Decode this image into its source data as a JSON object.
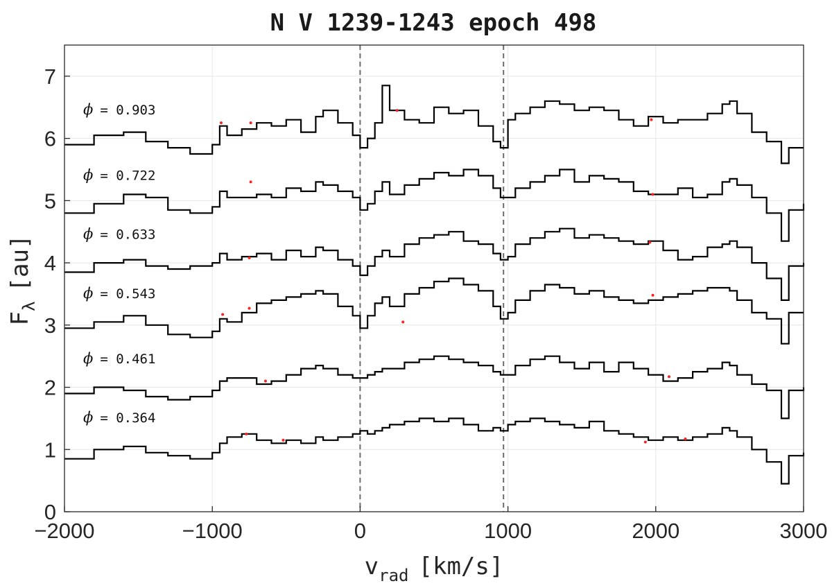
{
  "chart_data": {
    "type": "line",
    "title": "N V 1239-1243 epoch 498",
    "xlabel": {
      "main": "v",
      "sub": "rad",
      "units": "[km/s]"
    },
    "ylabel": {
      "main": "F",
      "sub": "λ",
      "units": "[au]"
    },
    "xlim": [
      -2000,
      3000
    ],
    "ylim": [
      0,
      7.5
    ],
    "xticks": [
      -2000,
      -1000,
      0,
      1000,
      2000,
      3000
    ],
    "yticks": [
      0,
      1,
      2,
      3,
      4,
      5,
      6,
      7
    ],
    "grid": true,
    "reference_lines_x": [
      0,
      970
    ],
    "series": [
      {
        "name": "ϕ = 0.903",
        "label_num": "0.903",
        "offset": 5.85,
        "x": [
          -2000,
          -1800,
          -1600,
          -1450,
          -1300,
          -1150,
          -1000,
          -950,
          -900,
          -800,
          -700,
          -600,
          -500,
          -400,
          -300,
          -250,
          -150,
          -50,
          0,
          50,
          100,
          150,
          200,
          300,
          400,
          500,
          600,
          700,
          800,
          900,
          950,
          1000,
          1050,
          1150,
          1250,
          1350,
          1450,
          1550,
          1650,
          1750,
          1850,
          1950,
          2050,
          2150,
          2250,
          2350,
          2450,
          2500,
          2550,
          2650,
          2750,
          2850,
          2900,
          3000
        ],
        "y": [
          5.9,
          6.05,
          6.1,
          5.95,
          5.85,
          5.75,
          5.9,
          6.2,
          6.05,
          6.15,
          6.25,
          6.2,
          6.3,
          6.1,
          6.35,
          6.45,
          6.25,
          6.05,
          5.85,
          6.0,
          6.25,
          6.85,
          6.45,
          6.3,
          6.25,
          6.5,
          6.4,
          6.45,
          6.2,
          5.95,
          5.85,
          6.3,
          6.4,
          6.5,
          6.6,
          6.55,
          6.45,
          6.5,
          6.45,
          6.3,
          6.2,
          6.35,
          6.25,
          6.3,
          6.3,
          6.4,
          6.55,
          6.6,
          6.4,
          6.1,
          5.95,
          5.6,
          5.85,
          5.85
        ]
      },
      {
        "name": "ϕ = 0.722",
        "label_num": "0.722",
        "offset": 4.8,
        "x": [
          -2000,
          -1800,
          -1600,
          -1450,
          -1300,
          -1150,
          -1000,
          -950,
          -900,
          -800,
          -700,
          -600,
          -500,
          -400,
          -300,
          -250,
          -150,
          -50,
          0,
          50,
          100,
          150,
          200,
          300,
          400,
          500,
          600,
          700,
          800,
          900,
          950,
          1000,
          1050,
          1150,
          1250,
          1350,
          1450,
          1550,
          1650,
          1750,
          1850,
          1950,
          2050,
          2150,
          2250,
          2350,
          2450,
          2500,
          2550,
          2650,
          2750,
          2850,
          2900,
          3000
        ],
        "y": [
          4.8,
          4.95,
          5.1,
          5.05,
          4.85,
          4.8,
          4.9,
          5.15,
          5.05,
          5.05,
          5.1,
          5.05,
          5.2,
          5.15,
          5.3,
          5.25,
          5.15,
          5.05,
          4.85,
          4.95,
          5.15,
          5.3,
          5.1,
          5.25,
          5.35,
          5.45,
          5.4,
          5.5,
          5.4,
          5.2,
          5.05,
          5.05,
          5.2,
          5.3,
          5.4,
          5.5,
          5.3,
          5.4,
          5.35,
          5.3,
          5.15,
          5.1,
          5.1,
          5.2,
          5.05,
          5.1,
          5.3,
          5.35,
          5.25,
          5.05,
          4.8,
          4.35,
          4.85,
          4.95
        ]
      },
      {
        "name": "ϕ = 0.633",
        "label_num": "0.633",
        "offset": 3.85,
        "x": [
          -2000,
          -1800,
          -1600,
          -1450,
          -1300,
          -1150,
          -1000,
          -950,
          -900,
          -800,
          -700,
          -600,
          -500,
          -400,
          -300,
          -250,
          -150,
          -50,
          0,
          50,
          100,
          150,
          200,
          300,
          400,
          500,
          600,
          700,
          800,
          900,
          950,
          1000,
          1050,
          1150,
          1250,
          1350,
          1450,
          1550,
          1650,
          1750,
          1850,
          1950,
          2050,
          2150,
          2250,
          2350,
          2450,
          2500,
          2550,
          2650,
          2750,
          2850,
          2900,
          3000
        ],
        "y": [
          3.85,
          4.0,
          4.05,
          3.95,
          3.9,
          3.95,
          4.0,
          4.15,
          4.05,
          4.1,
          4.15,
          4.05,
          4.2,
          4.1,
          4.25,
          4.2,
          4.05,
          3.95,
          3.8,
          3.95,
          4.1,
          4.2,
          4.1,
          4.3,
          4.4,
          4.45,
          4.5,
          4.35,
          4.3,
          4.15,
          4.05,
          4.1,
          4.3,
          4.4,
          4.5,
          4.55,
          4.4,
          4.45,
          4.4,
          4.35,
          4.3,
          4.35,
          4.2,
          4.05,
          4.1,
          4.25,
          4.3,
          4.35,
          4.25,
          4.0,
          3.75,
          3.4,
          3.95,
          4.0
        ]
      },
      {
        "name": "ϕ = 0.543",
        "label_num": "0.543",
        "offset": 2.9,
        "x": [
          -2000,
          -1800,
          -1600,
          -1450,
          -1300,
          -1150,
          -1000,
          -950,
          -900,
          -800,
          -700,
          -600,
          -500,
          -400,
          -300,
          -250,
          -150,
          -50,
          0,
          50,
          100,
          150,
          200,
          300,
          400,
          500,
          600,
          700,
          800,
          900,
          950,
          1000,
          1050,
          1150,
          1250,
          1350,
          1450,
          1550,
          1650,
          1750,
          1850,
          1950,
          2050,
          2150,
          2250,
          2350,
          2450,
          2500,
          2550,
          2650,
          2750,
          2850,
          2900,
          3000
        ],
        "y": [
          2.95,
          3.05,
          3.15,
          3.0,
          2.85,
          2.8,
          2.9,
          3.1,
          3.05,
          3.2,
          3.35,
          3.4,
          3.45,
          3.5,
          3.55,
          3.5,
          3.3,
          3.15,
          2.95,
          3.15,
          3.35,
          3.45,
          3.3,
          3.5,
          3.6,
          3.7,
          3.75,
          3.65,
          3.55,
          3.3,
          3.1,
          3.2,
          3.4,
          3.55,
          3.65,
          3.6,
          3.5,
          3.55,
          3.45,
          3.4,
          3.35,
          3.4,
          3.45,
          3.5,
          3.55,
          3.6,
          3.6,
          3.55,
          3.4,
          3.2,
          3.1,
          2.7,
          3.2,
          3.2
        ]
      },
      {
        "name": "ϕ = 0.461",
        "label_num": "0.461",
        "offset": 1.85,
        "x": [
          -2000,
          -1800,
          -1600,
          -1450,
          -1300,
          -1150,
          -1000,
          -950,
          -900,
          -800,
          -700,
          -600,
          -500,
          -400,
          -300,
          -250,
          -150,
          -50,
          0,
          50,
          100,
          150,
          200,
          300,
          400,
          500,
          600,
          700,
          800,
          900,
          950,
          1000,
          1050,
          1150,
          1250,
          1350,
          1450,
          1550,
          1650,
          1750,
          1850,
          1950,
          2050,
          2150,
          2250,
          2350,
          2450,
          2500,
          2550,
          2650,
          2750,
          2850,
          2900,
          3000
        ],
        "y": [
          1.9,
          2.0,
          1.95,
          1.85,
          1.8,
          1.85,
          1.95,
          2.1,
          2.15,
          2.15,
          2.05,
          2.1,
          2.2,
          2.3,
          2.35,
          2.3,
          2.2,
          2.15,
          2.15,
          2.2,
          2.25,
          2.3,
          2.3,
          2.4,
          2.45,
          2.5,
          2.45,
          2.4,
          2.35,
          2.25,
          2.2,
          2.2,
          2.35,
          2.45,
          2.5,
          2.4,
          2.3,
          2.4,
          2.25,
          2.4,
          2.3,
          2.2,
          2.1,
          2.15,
          2.25,
          2.3,
          2.4,
          2.35,
          2.2,
          2.05,
          1.95,
          1.5,
          1.95,
          2.0
        ]
      },
      {
        "name": "ϕ = 0.364",
        "label_num": "0.364",
        "offset": 0.9,
        "x": [
          -2000,
          -1800,
          -1600,
          -1450,
          -1300,
          -1150,
          -1000,
          -950,
          -900,
          -800,
          -700,
          -600,
          -500,
          -400,
          -300,
          -250,
          -150,
          -50,
          0,
          50,
          100,
          150,
          200,
          300,
          400,
          500,
          600,
          700,
          800,
          900,
          950,
          1000,
          1050,
          1150,
          1250,
          1350,
          1450,
          1550,
          1650,
          1750,
          1850,
          1950,
          2050,
          2150,
          2250,
          2350,
          2450,
          2500,
          2550,
          2650,
          2750,
          2850,
          2900,
          3000
        ],
        "y": [
          0.85,
          1.0,
          1.05,
          0.95,
          0.9,
          0.85,
          0.95,
          1.1,
          1.2,
          1.25,
          1.15,
          1.1,
          1.15,
          1.1,
          1.2,
          1.15,
          1.2,
          1.25,
          1.3,
          1.25,
          1.3,
          1.35,
          1.4,
          1.45,
          1.5,
          1.45,
          1.5,
          1.4,
          1.3,
          1.35,
          1.3,
          1.4,
          1.45,
          1.5,
          1.45,
          1.4,
          1.35,
          1.45,
          1.3,
          1.25,
          1.2,
          1.15,
          1.2,
          1.15,
          1.2,
          1.25,
          1.35,
          1.3,
          1.2,
          1.0,
          0.8,
          0.45,
          0.9,
          0.95
        ]
      }
    ],
    "flagged_points": [
      {
        "x": -940,
        "y": 6.25
      },
      {
        "x": -740,
        "y": 6.25
      },
      {
        "x": 250,
        "y": 6.45
      },
      {
        "x": 1970,
        "y": 6.3
      },
      {
        "x": -740,
        "y": 5.3
      },
      {
        "x": 1980,
        "y": 5.1
      },
      {
        "x": -750,
        "y": 4.08
      },
      {
        "x": 1960,
        "y": 4.33
      },
      {
        "x": -930,
        "y": 3.17
      },
      {
        "x": -750,
        "y": 3.27
      },
      {
        "x": 290,
        "y": 3.05
      },
      {
        "x": 1980,
        "y": 3.48
      },
      {
        "x": -640,
        "y": 2.1
      },
      {
        "x": 2090,
        "y": 2.17
      },
      {
        "x": -770,
        "y": 1.25
      },
      {
        "x": -520,
        "y": 1.15
      },
      {
        "x": 1930,
        "y": 1.12
      },
      {
        "x": 2200,
        "y": 1.17
      }
    ]
  },
  "colors": {
    "spectrum": "#000000",
    "flag": "#ff2020",
    "reference_line": "#6b6b6b",
    "grid": "#e6e6e6"
  },
  "phase_symbol": "ϕ"
}
